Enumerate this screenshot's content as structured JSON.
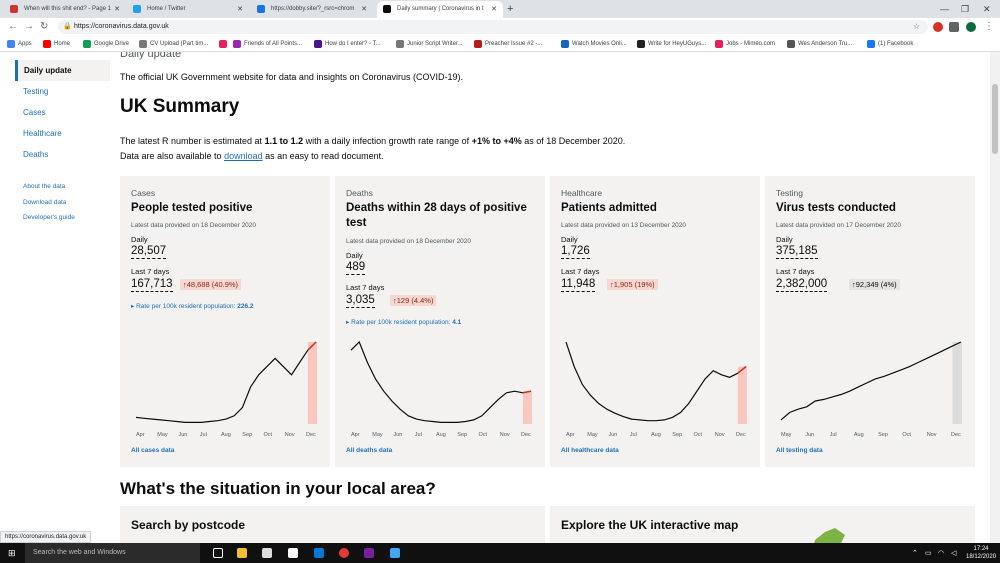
{
  "browser": {
    "tabs": [
      {
        "title": "When will this shit end? - Page 1",
        "color": "#cc3333"
      },
      {
        "title": "Home / Twitter",
        "color": "#1da1f2"
      },
      {
        "title": "https://dobby.site/?_rsrc=chrom",
        "color": "#1a73e8"
      },
      {
        "title": "Daily summary | Coronavirus in t",
        "color": "#0b0c0c"
      }
    ],
    "new_tab": "+",
    "url": "https://coronavirus.data.gov.uk",
    "bookmarks": [
      {
        "label": "Apps",
        "color": "#4285f4"
      },
      {
        "label": "Home",
        "color": "#ff0000"
      },
      {
        "label": "Google Drive",
        "color": "#0f9d58"
      },
      {
        "label": "CV Upload (Part tim...",
        "color": "#777777"
      },
      {
        "label": "",
        "color": "#e91e63"
      },
      {
        "label": "Friends of All Points...",
        "color": "#9c27b0"
      },
      {
        "label": "How do I enter? - T...",
        "color": "#4a148c"
      },
      {
        "label": "Junior Script Writer...",
        "color": "#777777"
      },
      {
        "label": "Preacher Issue #2 -...",
        "color": "#b71c1c"
      },
      {
        "label": "Watch Movies Onli...",
        "color": "#1565c0"
      },
      {
        "label": "Write for HeyUGuys...",
        "color": "#212121"
      },
      {
        "label": "Jobs - Mimeo.com",
        "color": "#e91e63"
      },
      {
        "label": "Wes Anderson Tru...",
        "color": "#555555"
      },
      {
        "label": "(1) Facebook",
        "color": "#1877f2"
      }
    ],
    "status_url": "https://coronavirus.data.gov.uk"
  },
  "sidebar": {
    "items": [
      "Daily update",
      "Testing",
      "Cases",
      "Healthcare",
      "Deaths"
    ],
    "links": [
      "About the data",
      "Download data",
      "Developer's guide"
    ]
  },
  "header": {
    "cut_title": "Daily update",
    "intro": "The official UK Government website for data and insights on Coronavirus (COVID-19).",
    "title": "UK Summary",
    "r_pre": "The latest R number is estimated at ",
    "r_value": "1.1 to 1.2",
    "r_mid": " with a daily infection growth rate range of ",
    "r_growth": "+1% to +4%",
    "r_post": " as of 18 December 2020.",
    "dl_pre": "Data are also available to ",
    "dl_link": "download",
    "dl_post": " as an easy to read document."
  },
  "cards": [
    {
      "category": "Cases",
      "title": "People tested positive",
      "latest": "Latest data provided on 18 December 2020",
      "daily_label": "Daily",
      "daily": "28,507",
      "week_label": "Last 7 days",
      "week": "167,713",
      "change": "↑48,688 (40.9%)",
      "rate_label": "▸ Rate per 100k resident population: ",
      "rate": "226.2",
      "link": "All cases data"
    },
    {
      "category": "Deaths",
      "title": "Deaths within 28 days of positive test",
      "latest": "Latest data provided on 18 December 2020",
      "daily_label": "Daily",
      "daily": "489",
      "week_label": "Last 7 days",
      "week": "3,035",
      "change": "↑129 (4.4%)",
      "rate_label": "▸ Rate per 100k resident population: ",
      "rate": "4.1",
      "link": "All deaths data"
    },
    {
      "category": "Healthcare",
      "title": "Patients admitted",
      "latest": "Latest data provided on 13 December 2020",
      "daily_label": "Daily",
      "daily": "1,726",
      "week_label": "Last 7 days",
      "week": "11,948",
      "change": "↑1,905 (19%)",
      "link": "All healthcare data"
    },
    {
      "category": "Testing",
      "title": "Virus tests conducted",
      "latest": "Latest data provided on 17 December 2020",
      "daily_label": "Daily",
      "daily": "375,185",
      "week_label": "Last 7 days",
      "week": "2,382,000",
      "change": "↑92,349 (4%)",
      "link": "All testing data"
    }
  ],
  "chart_data": [
    {
      "type": "line",
      "title": "",
      "months": [
        "Apr",
        "May",
        "Jun",
        "Jul",
        "Aug",
        "Sep",
        "Oct",
        "Nov",
        "Dec"
      ],
      "values": [
        8,
        7,
        6,
        5,
        4,
        3,
        2,
        2,
        2,
        3,
        4,
        6,
        10,
        20,
        45,
        60,
        70,
        80,
        70,
        60,
        75,
        90,
        100
      ],
      "highlight_last": true,
      "color": "#0b0c0c",
      "highlight_color": "#d4351c"
    },
    {
      "type": "line",
      "title": "",
      "months": [
        "Apr",
        "May",
        "Jun",
        "Jul",
        "Aug",
        "Sep",
        "Oct",
        "Nov",
        "Dec"
      ],
      "values": [
        90,
        100,
        75,
        55,
        40,
        28,
        18,
        10,
        6,
        4,
        3,
        2,
        2,
        2,
        3,
        5,
        10,
        20,
        30,
        38,
        40,
        38,
        40
      ],
      "highlight_last": true,
      "color": "#0b0c0c",
      "highlight_color": "#d4351c"
    },
    {
      "type": "line",
      "title": "",
      "months": [
        "Apr",
        "May",
        "Jun",
        "Jul",
        "Aug",
        "Sep",
        "Oct",
        "Nov",
        "Dec"
      ],
      "values": [
        100,
        70,
        48,
        35,
        25,
        18,
        13,
        9,
        6,
        5,
        4,
        4,
        5,
        8,
        14,
        25,
        40,
        55,
        65,
        60,
        57,
        62,
        70
      ],
      "highlight_last": true,
      "color": "#0b0c0c",
      "highlight_color": "#d4351c"
    },
    {
      "type": "line",
      "title": "",
      "months": [
        "May",
        "Jun",
        "Jul",
        "Aug",
        "Sep",
        "Oct",
        "Nov",
        "Dec"
      ],
      "values": [
        5,
        14,
        18,
        21,
        28,
        30,
        33,
        36,
        40,
        45,
        50,
        55,
        58,
        62,
        66,
        70,
        75,
        80,
        85,
        90,
        95,
        100
      ],
      "highlight_last": false,
      "color": "#0b0c0c",
      "highlight_color": "#b1b4b6"
    }
  ],
  "local": {
    "title": "What's the situation in your local area?",
    "postcode": "Search by postcode",
    "map": "Explore the UK interactive map"
  },
  "taskbar": {
    "search": "Search the web and Windows",
    "time": "17:24",
    "date": "18/12/2020"
  }
}
